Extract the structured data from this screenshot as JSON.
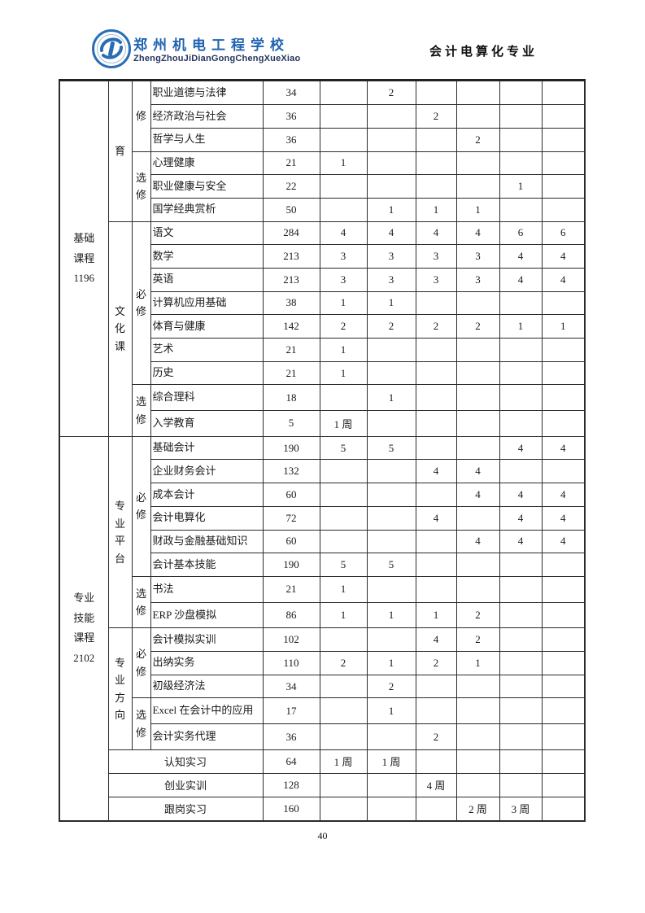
{
  "header": {
    "school_name": "郑州机电工程学校",
    "school_pinyin": "ZhengZhouJiDianGongChengXueXiao",
    "major": "会计电算化专业",
    "logo_name": "school-logo",
    "brand_blue": "#1f63b0",
    "text_dark": "#111111"
  },
  "footer": {
    "page_number": "40"
  },
  "table": {
    "semester_columns": 6,
    "week_unit": "周",
    "categories": [
      {
        "label": "基础课程1196",
        "subsections": [
          {
            "label": "育",
            "groups": [
              {
                "type": "修",
                "courses": [
                  {
                    "name": "职业道德与法律",
                    "hours": "34",
                    "sems": [
                      "",
                      "2",
                      "",
                      "",
                      "",
                      ""
                    ]
                  },
                  {
                    "name": "经济政治与社会",
                    "hours": "36",
                    "sems": [
                      "",
                      "",
                      "2",
                      "",
                      "",
                      ""
                    ]
                  },
                  {
                    "name": "哲学与人生",
                    "hours": "36",
                    "sems": [
                      "",
                      "",
                      "",
                      "2",
                      "",
                      ""
                    ]
                  }
                ]
              },
              {
                "type": "选修",
                "courses": [
                  {
                    "name": "心理健康",
                    "hours": "21",
                    "sems": [
                      "1",
                      "",
                      "",
                      "",
                      "",
                      ""
                    ]
                  },
                  {
                    "name": "职业健康与安全",
                    "hours": "22",
                    "sems": [
                      "",
                      "",
                      "",
                      "",
                      "1",
                      ""
                    ]
                  },
                  {
                    "name": "国学经典赏析",
                    "hours": "50",
                    "sems": [
                      "",
                      "1",
                      "1",
                      "1",
                      "",
                      ""
                    ]
                  }
                ]
              }
            ]
          },
          {
            "label": "文化课",
            "groups": [
              {
                "type": "必修",
                "courses": [
                  {
                    "name": "语文",
                    "hours": "284",
                    "sems": [
                      "4",
                      "4",
                      "4",
                      "4",
                      "6",
                      "6"
                    ]
                  },
                  {
                    "name": "数学",
                    "hours": "213",
                    "sems": [
                      "3",
                      "3",
                      "3",
                      "3",
                      "4",
                      "4"
                    ]
                  },
                  {
                    "name": "英语",
                    "hours": "213",
                    "sems": [
                      "3",
                      "3",
                      "3",
                      "3",
                      "4",
                      "4"
                    ]
                  },
                  {
                    "name": "计算机应用基础",
                    "hours": "38",
                    "sems": [
                      "1",
                      "1",
                      "",
                      "",
                      "",
                      ""
                    ]
                  },
                  {
                    "name": "体育与健康",
                    "hours": "142",
                    "sems": [
                      "2",
                      "2",
                      "2",
                      "2",
                      "1",
                      "1"
                    ]
                  },
                  {
                    "name": "艺术",
                    "hours": "21",
                    "sems": [
                      "1",
                      "",
                      "",
                      "",
                      "",
                      ""
                    ]
                  },
                  {
                    "name": "历史",
                    "hours": "21",
                    "sems": [
                      "1",
                      "",
                      "",
                      "",
                      "",
                      ""
                    ]
                  }
                ]
              },
              {
                "type": "选修",
                "courses": [
                  {
                    "name": "综合理科",
                    "hours": "18",
                    "sems": [
                      "",
                      "1",
                      "",
                      "",
                      "",
                      ""
                    ]
                  },
                  {
                    "name": "入学教育",
                    "hours": "5",
                    "sems": [
                      "1 周",
                      "",
                      "",
                      "",
                      "",
                      ""
                    ]
                  }
                ]
              }
            ]
          }
        ],
        "merged_rows": []
      },
      {
        "label": "专业技能课程2102",
        "subsections": [
          {
            "label": "专业平台",
            "groups": [
              {
                "type": "必修",
                "courses": [
                  {
                    "name": "基础会计",
                    "hours": "190",
                    "sems": [
                      "5",
                      "5",
                      "",
                      "",
                      "4",
                      "4"
                    ]
                  },
                  {
                    "name": "企业财务会计",
                    "hours": "132",
                    "sems": [
                      "",
                      "",
                      "4",
                      "4",
                      "",
                      ""
                    ]
                  },
                  {
                    "name": "成本会计",
                    "hours": "60",
                    "sems": [
                      "",
                      "",
                      "",
                      "4",
                      "4",
                      "4"
                    ]
                  },
                  {
                    "name": "会计电算化",
                    "hours": "72",
                    "sems": [
                      "",
                      "",
                      "4",
                      "",
                      "4",
                      "4"
                    ]
                  },
                  {
                    "name": "财政与金融基础知识",
                    "hours": "60",
                    "sems": [
                      "",
                      "",
                      "",
                      "4",
                      "4",
                      "4"
                    ]
                  },
                  {
                    "name": "会计基本技能",
                    "hours": "190",
                    "sems": [
                      "5",
                      "5",
                      "",
                      "",
                      "",
                      ""
                    ]
                  }
                ]
              },
              {
                "type": "选修",
                "courses": [
                  {
                    "name": "书法",
                    "hours": "21",
                    "sems": [
                      "1",
                      "",
                      "",
                      "",
                      "",
                      ""
                    ]
                  },
                  {
                    "name": "ERP 沙盘模拟",
                    "hours": "86",
                    "sems": [
                      "1",
                      "1",
                      "1",
                      "2",
                      "",
                      ""
                    ]
                  }
                ]
              }
            ]
          },
          {
            "label": "专业方向",
            "groups": [
              {
                "type": "必修",
                "courses": [
                  {
                    "name": "会计模拟实训",
                    "hours": "102",
                    "sems": [
                      "",
                      "",
                      "4",
                      "2",
                      "",
                      ""
                    ]
                  },
                  {
                    "name": "出纳实务",
                    "hours": "110",
                    "sems": [
                      "2",
                      "1",
                      "2",
                      "1",
                      "",
                      ""
                    ]
                  },
                  {
                    "name": "初级经济法",
                    "hours": "34",
                    "sems": [
                      "",
                      "2",
                      "",
                      "",
                      "",
                      ""
                    ]
                  }
                ]
              },
              {
                "type": "选修",
                "courses": [
                  {
                    "name": "Excel 在会计中的应用",
                    "hours": "17",
                    "sems": [
                      "",
                      "1",
                      "",
                      "",
                      "",
                      ""
                    ]
                  },
                  {
                    "name": "会计实务代理",
                    "hours": "36",
                    "sems": [
                      "",
                      "",
                      "2",
                      "",
                      "",
                      ""
                    ]
                  }
                ]
              }
            ]
          }
        ],
        "merged_rows": [
          {
            "name": "认知实习",
            "hours": "64",
            "sems": [
              "1 周",
              "1 周",
              "",
              "",
              "",
              ""
            ]
          },
          {
            "name": "创业实训",
            "hours": "128",
            "sems": [
              "",
              "",
              "4 周",
              "",
              "",
              ""
            ]
          },
          {
            "name": "跟岗实习",
            "hours": "160",
            "sems": [
              "",
              "",
              "",
              "2 周",
              "3 周",
              ""
            ]
          }
        ]
      }
    ]
  }
}
